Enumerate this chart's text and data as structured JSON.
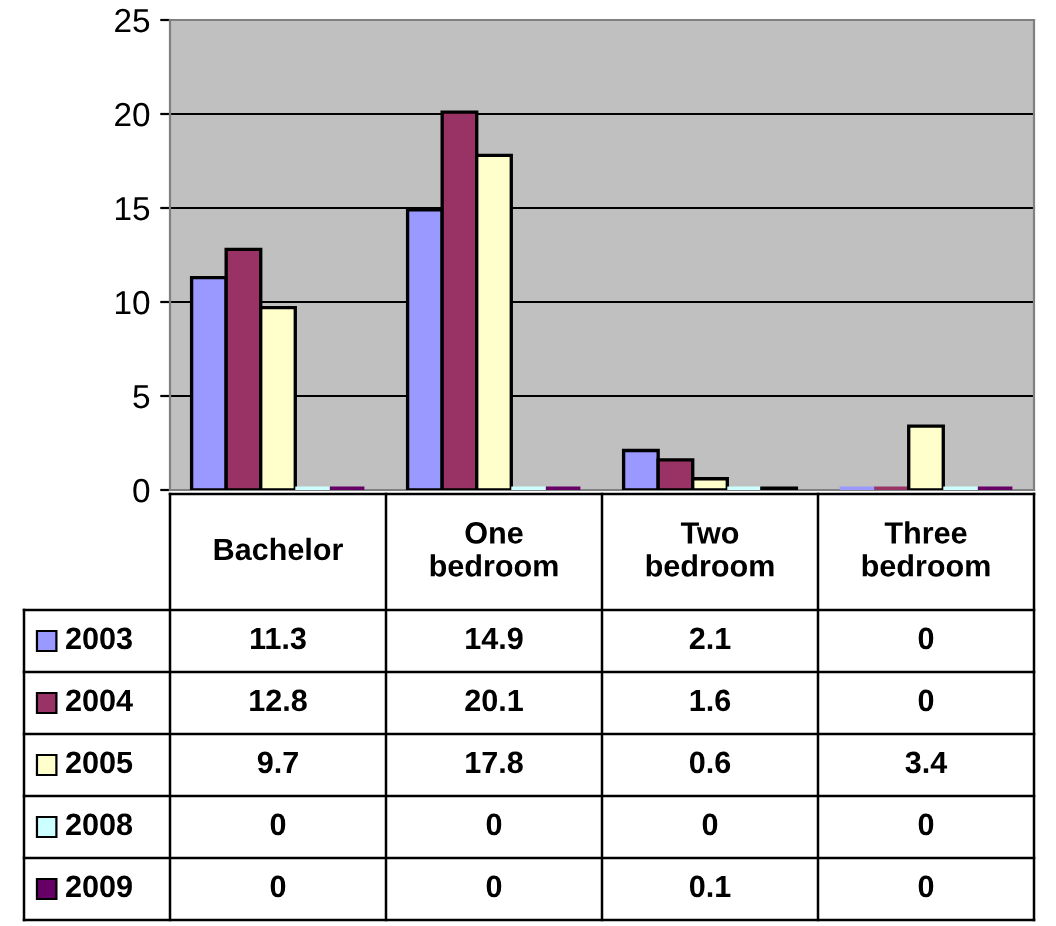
{
  "chart_data": {
    "type": "bar",
    "categories": [
      "Bachelor",
      "One bedroom",
      "Two bedroom",
      "Three bedroom"
    ],
    "series": [
      {
        "name": "2003",
        "color": "#9999ff",
        "values": [
          11.3,
          14.9,
          2.1,
          0
        ]
      },
      {
        "name": "2004",
        "color": "#993366",
        "values": [
          12.8,
          20.1,
          1.6,
          0
        ]
      },
      {
        "name": "2005",
        "color": "#ffffcc",
        "values": [
          9.7,
          17.8,
          0.6,
          3.4
        ]
      },
      {
        "name": "2008",
        "color": "#ccffff",
        "values": [
          0,
          0,
          0,
          0
        ]
      },
      {
        "name": "2009",
        "color": "#660066",
        "values": [
          0,
          0,
          0.1,
          0
        ]
      }
    ],
    "ylim": [
      0,
      25
    ],
    "yticks": [
      0,
      5,
      10,
      15,
      20,
      25
    ],
    "grid": "y",
    "legend": "bottom",
    "data_labels": true
  }
}
